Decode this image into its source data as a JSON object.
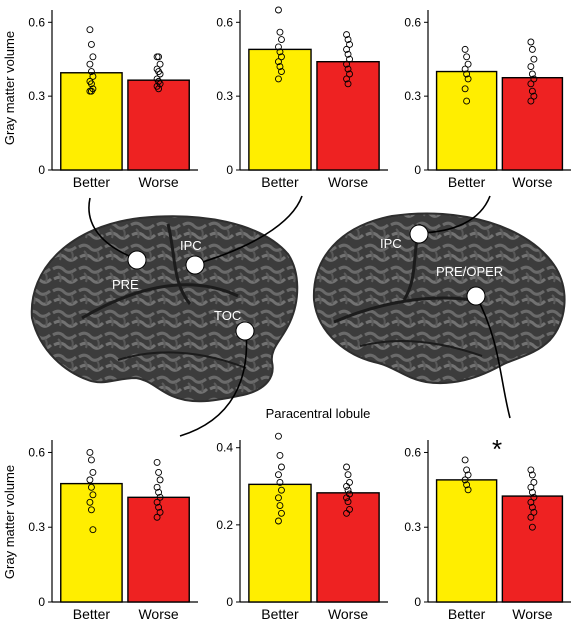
{
  "figure": {
    "ylabel": "Gray matter volume",
    "annotation": "Paracentral lobule",
    "significance_marker": "*"
  },
  "brain": {
    "left_labels": [
      "PRE",
      "IPC",
      "TOC"
    ],
    "right_labels": [
      "IPC",
      "PRE/OPER"
    ]
  },
  "colors": {
    "better": "#ffee00",
    "worse": "#ee2222",
    "brain": "#3a3a3a"
  },
  "chart_data": [
    {
      "type": "bar",
      "categories": [
        "Better",
        "Worse"
      ],
      "values": [
        0.395,
        0.365
      ],
      "ylim": [
        0,
        0.65
      ],
      "yticks": [
        0,
        0.3,
        0.6
      ],
      "points": [
        [
          0.57,
          0.51,
          0.46,
          0.43,
          0.4,
          0.38,
          0.36,
          0.35,
          0.33,
          0.32,
          0.32
        ],
        [
          0.46,
          0.46,
          0.43,
          0.41,
          0.4,
          0.39,
          0.37,
          0.36,
          0.35,
          0.34,
          0.33
        ]
      ]
    },
    {
      "type": "bar",
      "categories": [
        "Better",
        "Worse"
      ],
      "values": [
        0.49,
        0.44
      ],
      "ylim": [
        0,
        0.65
      ],
      "yticks": [
        0,
        0.3,
        0.6
      ],
      "points": [
        [
          0.65,
          0.56,
          0.53,
          0.5,
          0.48,
          0.46,
          0.44,
          0.42,
          0.4,
          0.37
        ],
        [
          0.55,
          0.53,
          0.51,
          0.49,
          0.47,
          0.45,
          0.43,
          0.41,
          0.39,
          0.37,
          0.35
        ]
      ]
    },
    {
      "type": "bar",
      "categories": [
        "Better",
        "Worse"
      ],
      "values": [
        0.4,
        0.375
      ],
      "ylim": [
        0,
        0.65
      ],
      "yticks": [
        0,
        0.3,
        0.6
      ],
      "points": [
        [
          0.49,
          0.46,
          0.43,
          0.41,
          0.39,
          0.37,
          0.33,
          0.28
        ],
        [
          0.52,
          0.49,
          0.45,
          0.42,
          0.39,
          0.37,
          0.35,
          0.32,
          0.3,
          0.28
        ]
      ]
    },
    {
      "type": "bar",
      "categories": [
        "Better",
        "Worse"
      ],
      "values": [
        0.475,
        0.42
      ],
      "ylim": [
        0,
        0.65
      ],
      "yticks": [
        0,
        0.3,
        0.6
      ],
      "points": [
        [
          0.6,
          0.57,
          0.52,
          0.49,
          0.46,
          0.43,
          0.4,
          0.37,
          0.29
        ],
        [
          0.56,
          0.52,
          0.49,
          0.46,
          0.44,
          0.42,
          0.4,
          0.38,
          0.36,
          0.34
        ]
      ]
    },
    {
      "type": "bar",
      "categories": [
        "Better",
        "Worse"
      ],
      "values": [
        0.305,
        0.283
      ],
      "ylim": [
        0,
        0.42
      ],
      "yticks": [
        0,
        0.2,
        0.4
      ],
      "points": [
        [
          0.43,
          0.38,
          0.35,
          0.33,
          0.31,
          0.29,
          0.27,
          0.25,
          0.23,
          0.21
        ],
        [
          0.35,
          0.33,
          0.31,
          0.3,
          0.29,
          0.28,
          0.27,
          0.26,
          0.24,
          0.23
        ]
      ]
    },
    {
      "type": "bar",
      "categories": [
        "Better",
        "Worse"
      ],
      "values": [
        0.49,
        0.425
      ],
      "ylim": [
        0,
        0.65
      ],
      "yticks": [
        0,
        0.3,
        0.6
      ],
      "points": [
        [
          0.57,
          0.53,
          0.51,
          0.49,
          0.47,
          0.45
        ],
        [
          0.53,
          0.51,
          0.48,
          0.46,
          0.44,
          0.42,
          0.4,
          0.38,
          0.36,
          0.34,
          0.3
        ]
      ]
    }
  ]
}
